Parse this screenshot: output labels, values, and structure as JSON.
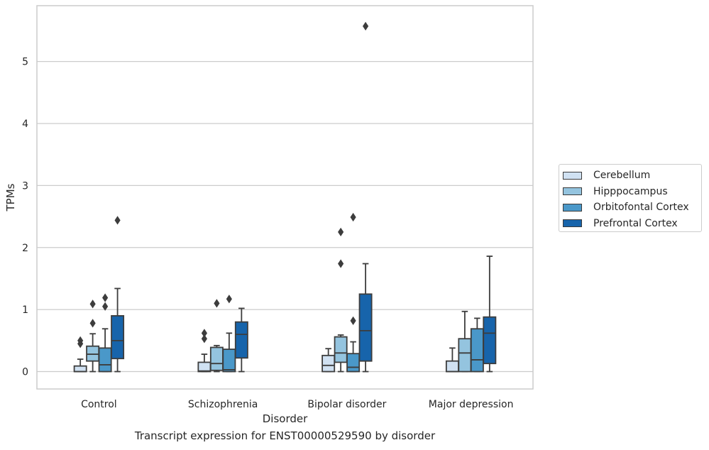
{
  "chart_data": {
    "type": "box",
    "ylabel": "TPMs",
    "xlabel": "Disorder",
    "caption": "Transcript expression for ENST00000529590 by disorder",
    "categories": [
      "Control",
      "Schizophrenia",
      "Bipolar disorder",
      "Major depression"
    ],
    "ylim": [
      -0.28,
      5.9
    ],
    "yticks": [
      0,
      1,
      2,
      3,
      4,
      5
    ],
    "grid": "horizontal",
    "legend_position": "right",
    "series": [
      {
        "name": "Cerebellum",
        "color": "#d0e1f2",
        "boxes": [
          {
            "whislo": 0,
            "q1": 0,
            "med": 0,
            "q3": 0.09,
            "whishi": 0.2,
            "fliers": [
              0.45,
              0.5
            ]
          },
          {
            "whislo": 0,
            "q1": 0,
            "med": 0.01,
            "q3": 0.15,
            "whishi": 0.28,
            "fliers": [
              0.53,
              0.62
            ]
          },
          {
            "whislo": 0,
            "q1": 0,
            "med": 0.1,
            "q3": 0.26,
            "whishi": 0.37,
            "fliers": []
          },
          {
            "whislo": 0,
            "q1": 0,
            "med": 0,
            "q3": 0.17,
            "whishi": 0.38,
            "fliers": []
          }
        ]
      },
      {
        "name": "Hipppocampus",
        "color": "#94c4df",
        "boxes": [
          {
            "whislo": 0,
            "q1": 0.17,
            "med": 0.28,
            "q3": 0.41,
            "whishi": 0.61,
            "fliers": [
              0.78,
              1.09
            ]
          },
          {
            "whislo": 0,
            "q1": 0.02,
            "med": 0.13,
            "q3": 0.39,
            "whishi": 0.42,
            "fliers": [
              1.1
            ]
          },
          {
            "whislo": 0,
            "q1": 0.15,
            "med": 0.3,
            "q3": 0.56,
            "whishi": 0.59,
            "fliers": [
              1.74,
              2.25
            ]
          },
          {
            "whislo": 0,
            "q1": 0,
            "med": 0.3,
            "q3": 0.53,
            "whishi": 0.97,
            "fliers": []
          }
        ]
      },
      {
        "name": "Orbitofontal Cortex",
        "color": "#4a98c9",
        "boxes": [
          {
            "whislo": 0,
            "q1": 0,
            "med": 0.11,
            "q3": 0.38,
            "whishi": 0.69,
            "fliers": [
              1.05,
              1.19
            ]
          },
          {
            "whislo": 0,
            "q1": 0,
            "med": 0.03,
            "q3": 0.36,
            "whishi": 0.62,
            "fliers": [
              1.17
            ]
          },
          {
            "whislo": 0,
            "q1": 0,
            "med": 0.07,
            "q3": 0.29,
            "whishi": 0.48,
            "fliers": [
              0.82,
              2.49
            ]
          },
          {
            "whislo": 0,
            "q1": 0,
            "med": 0.19,
            "q3": 0.69,
            "whishi": 0.86,
            "fliers": []
          }
        ]
      },
      {
        "name": "Prefrontal Cortex",
        "color": "#1764ab",
        "boxes": [
          {
            "whislo": 0,
            "q1": 0.21,
            "med": 0.5,
            "q3": 0.9,
            "whishi": 1.34,
            "fliers": [
              2.44
            ]
          },
          {
            "whislo": 0,
            "q1": 0.22,
            "med": 0.6,
            "q3": 0.8,
            "whishi": 1.02,
            "fliers": []
          },
          {
            "whislo": 0,
            "q1": 0.17,
            "med": 0.66,
            "q3": 1.25,
            "whishi": 1.74,
            "fliers": [
              5.57
            ]
          },
          {
            "whislo": 0,
            "q1": 0.13,
            "med": 0.62,
            "q3": 0.88,
            "whishi": 1.86,
            "fliers": []
          }
        ]
      }
    ]
  }
}
